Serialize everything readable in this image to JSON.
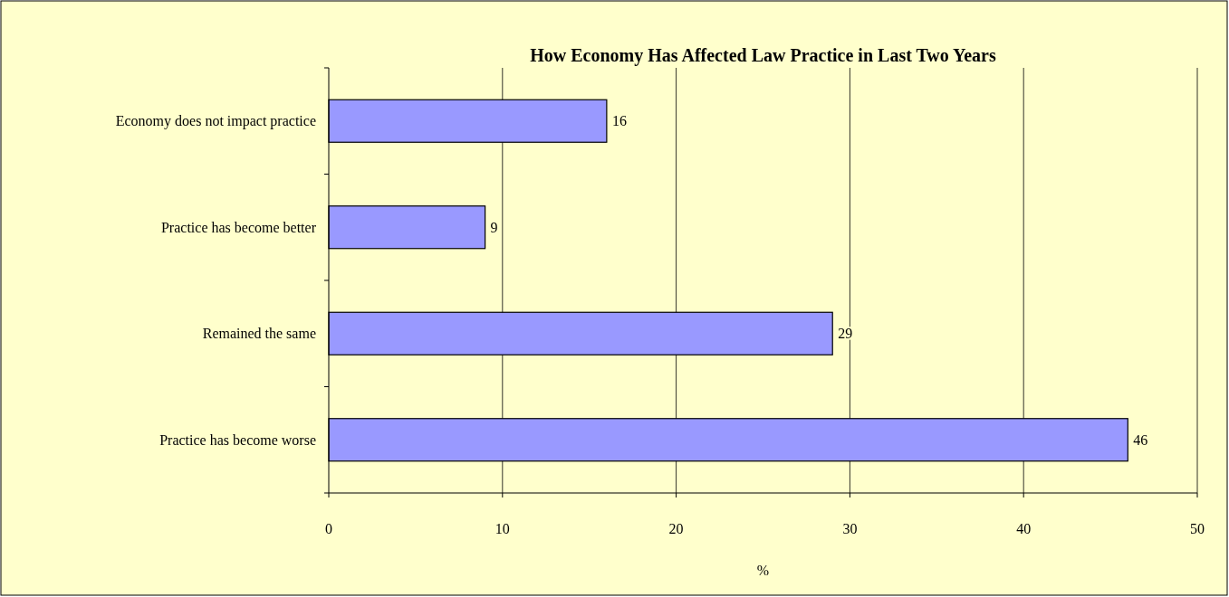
{
  "chart_data": {
    "type": "bar",
    "orientation": "horizontal",
    "title": "How Economy Has Affected Law Practice in Last Two Years",
    "xlabel": "%",
    "categories": [
      "Economy does not impact practice",
      "Practice has become better",
      "Remained the same",
      "Practice has become worse"
    ],
    "values": [
      16,
      9,
      29,
      46
    ],
    "color": "#9999ff",
    "xlim": [
      0,
      50
    ],
    "xticks": [
      0,
      10,
      20,
      30,
      40,
      50
    ],
    "grid": "x",
    "data_labels": true
  }
}
